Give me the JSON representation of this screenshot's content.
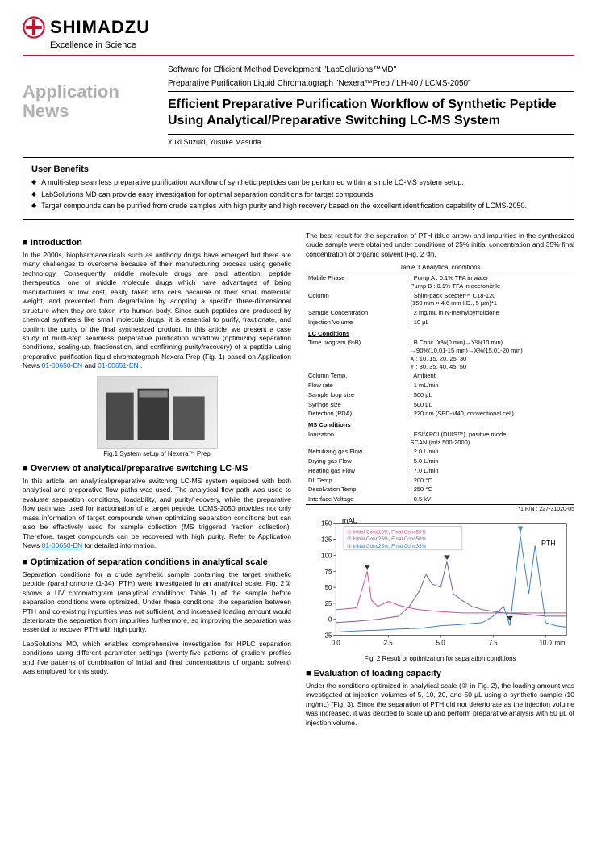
{
  "header": {
    "brand": "SHIMADZU",
    "tagline": "Excellence in Science",
    "logo_color": "#c8102e"
  },
  "title_block": {
    "app_news": "Application News",
    "software_line1": "Software for Efficient Method Development \"LabSolutions™MD\"",
    "software_line2": "Preparative Purification Liquid Chromatograph \"Nexera™Prep / LH-40 / LCMS-2050\"",
    "main_title": "Efficient Preparative Purification Workflow of Synthetic Peptide Using Analytical/Preparative Switching LC-MS System",
    "authors": "Yuki Suzuki, Yusuke Masuda"
  },
  "benefits": {
    "title": "User Benefits",
    "items": [
      "A multi-step seamless preparative purification workflow of synthetic peptides can be performed within a single LC-MS system setup.",
      "LabSolutions MD can provide easy investigation for optimal separation conditions for target compounds.",
      "Target compounds can be purified from crude samples with high purity and high recovery based on the excellent identification capability of LCMS-2050."
    ]
  },
  "intro": {
    "heading": "Introduction",
    "body": "In the 2000s, biopharmaceuticals such as antibody drugs have emerged but there are many challenges to overcome because of their manufacturing process using genetic technology. Consequently, middle molecule drugs are paid attention. peptide therapeutics, one of middle molecule drugs which have advantages of being manufactured at low cost, easily taken into cells because of their small molecular weight, and prevented from degradation by adopting a specific three-dimensional structure when they are taken into human body. Since such peptides are produced by chemical synthesis like small molecule drugs, it is essential to purify, fractionate, and confirm the purity of the final synthesized product. In this article, we present a case study of multi-step seamless preparative purification workflow (optimizing separation conditions, scaling-up, fractionation, and confirming purity/recovery) of a peptide using preparative purification liquid chromatograph Nexera Prep (Fig. 1) based on Application News ",
    "link1": "01-00650-EN",
    "link2": "01-00651-EN",
    "and": " and ",
    "period": "."
  },
  "fig1_caption": "Fig.1    System setup of Nexera™ Prep",
  "overview": {
    "heading": "Overview of analytical/preparative switching LC-MS",
    "body": "In this article, an analytical/preparative switching LC-MS system equipped with both analytical and preparative flow paths was used. The analytical flow path was used to evaluate separation conditions, loadability, and purity/recovery, while the preparative flow path was used for fractionation of a target peptide. LCMS-2050 provides not only mass information of target compounds when optimizing separation conditions but can also be effectively used for sample collection (MS triggered fraction collection). Therefore, target compounds can be recovered with high purity. Refer to Application News ",
    "link": "01-00650-EN",
    "tail": " for detailed information."
  },
  "optimization": {
    "heading": "Optimization of separation conditions in analytical scale",
    "body1": "Separation conditions for a crude synthetic sample containing the target synthetic peptide (parathormone (1-34): PTH) were investigated in an analytical scale. Fig. 2① shows a UV chromatogram (analytical conditions: Table 1) of the sample before separation conditions were optimized. Under these conditions, the separation between PTH and co-existing impurities was not sufficient, and increased loading amount would deteriorate the separation from impurities furthermore, so improving the separation was essential to recover PTH with high purity.",
    "body2": "LabSolutions MD, which enables comprehensive investigation for HPLC separation conditions using different parameter settings (twenty-five patterns of gradient profiles and five patterns of combination of initial and final concentrations of organic solvent) was employed for this study."
  },
  "right_intro": "The best result for the separation of PTH (blue arrow) and impurities in the synthesized crude sample were obtained under conditions of 25% initial concentration and 35% final concentration of organic solvent (Fig. 2 ③).",
  "table1": {
    "caption": "Table 1    Analytical conditions",
    "rows": [
      {
        "lbl": "Mobile Phase",
        "val": ": Pump A : 0.1% TFA in water\n  Pump B : 0.1% TFA in acetonitrile"
      },
      {
        "lbl": "Column",
        "val": ": Shim-pack Scepter™ C18-120\n  (150 mm × 4.6 mm I.D., 5 μm)*1"
      },
      {
        "lbl": "Sample Concentration",
        "val": ": 2 mg/mL in N-methylpyrrolidone"
      },
      {
        "lbl": "Injection Volume",
        "val": ": 10 μL"
      }
    ],
    "lc_group": "LC Conditions",
    "lc_rows": [
      {
        "lbl": "Time program (%B)",
        "val": ": B Conc. X%(0 min)→Y%(10 min)\n  →90%(10.01-15 min)→X%(15.01-20 min)\n  X : 10, 15, 20, 25, 30\n  Y : 30, 35, 40, 45, 50"
      },
      {
        "lbl": "Column Temp.",
        "val": ": Ambient"
      },
      {
        "lbl": "Flow rate",
        "val": ": 1 mL/min"
      },
      {
        "lbl": "Sample loop size",
        "val": ": 500 μL"
      },
      {
        "lbl": "Syringe size",
        "val": ": 500 μL"
      },
      {
        "lbl": "Detection (PDA)",
        "val": ": 220 nm (SPD-M40, conventional cell)"
      }
    ],
    "ms_group": "MS Conditions",
    "ms_rows": [
      {
        "lbl": "Ionization",
        "val": ": ESI/APCI (DUIS™),  positive mode\n  SCAN (m/z 500-2000)"
      },
      {
        "lbl": "Nebulizing gas Flow",
        "val": ": 2.0 L/min"
      },
      {
        "lbl": "Drying gas Flow",
        "val": ": 5.0 L/min"
      },
      {
        "lbl": "Heating gas Flow",
        "val": ": 7.0 L/min"
      },
      {
        "lbl": "DL Temp.",
        "val": ": 200 °C"
      },
      {
        "lbl": "Desolvation Temp.",
        "val": ": 250 °C"
      },
      {
        "lbl": "Interface Voltage",
        "val": ": 0.5 kV"
      }
    ]
  },
  "chart_note": "*1 P/N : 227-31020-05",
  "fig2": {
    "caption": "Fig. 2    Result of optimization for separation conditions",
    "ylabel": "mAU",
    "xlabel": "min",
    "ylim": [
      -25,
      150
    ],
    "yticks": [
      -25,
      0,
      25,
      50,
      75,
      100,
      125,
      150
    ],
    "xlim": [
      0,
      11
    ],
    "xticks": [
      0.0,
      2.5,
      5.0,
      7.5,
      10.0
    ],
    "legend": [
      {
        "label": "① Initial Conc10%, Final Conc50%",
        "color": "#d94a9a"
      },
      {
        "label": "② Initial Conc25%, Final Conc50%",
        "color": "#7a5ba6"
      },
      {
        "label": "③ Initial Conc25%, Final Conc35%",
        "color": "#3a7fbf"
      }
    ],
    "pth_label": "PTH",
    "arrow_color": "#3a7fbf",
    "series": [
      {
        "color": "#d94a9a",
        "points": [
          [
            0,
            15
          ],
          [
            1,
            18
          ],
          [
            1.5,
            75
          ],
          [
            1.7,
            30
          ],
          [
            2,
            20
          ],
          [
            2.5,
            28
          ],
          [
            3,
            22
          ],
          [
            3.5,
            18
          ],
          [
            4,
            15
          ],
          [
            5,
            12
          ],
          [
            6,
            10
          ],
          [
            7,
            10
          ],
          [
            8,
            10
          ],
          [
            9,
            10
          ],
          [
            10,
            10
          ],
          [
            11,
            10
          ]
        ]
      },
      {
        "color": "#7a5ba6",
        "points": [
          [
            0,
            -5
          ],
          [
            1,
            -3
          ],
          [
            2,
            0
          ],
          [
            3,
            5
          ],
          [
            3.5,
            20
          ],
          [
            4,
            45
          ],
          [
            4.3,
            70
          ],
          [
            4.6,
            55
          ],
          [
            5,
            50
          ],
          [
            5.3,
            90
          ],
          [
            5.6,
            40
          ],
          [
            6,
            30
          ],
          [
            6.5,
            20
          ],
          [
            7,
            15
          ],
          [
            8,
            10
          ],
          [
            9,
            8
          ],
          [
            10,
            5
          ],
          [
            11,
            5
          ]
        ]
      },
      {
        "color": "#3a7fbf",
        "points": [
          [
            0,
            -20
          ],
          [
            1,
            -18
          ],
          [
            2,
            -17
          ],
          [
            3,
            -15
          ],
          [
            4,
            -14
          ],
          [
            5,
            -10
          ],
          [
            6,
            -8
          ],
          [
            7,
            -5
          ],
          [
            7.5,
            5
          ],
          [
            8,
            20
          ],
          [
            8.3,
            -10
          ],
          [
            8.8,
            130
          ],
          [
            9.2,
            40
          ],
          [
            9.5,
            115
          ],
          [
            10,
            -5
          ],
          [
            10.5,
            -10
          ],
          [
            11,
            -12
          ]
        ]
      }
    ]
  },
  "loading": {
    "heading": "Evaluation of loading capacity",
    "body": "Under the conditions optimized in analytical scale (③ in Fig. 2), the loading amount was investigated at injection volumes of 5, 10, 20, and 50 μL using a synthetic sample (10 mg/mL) (Fig. 3). Since the separation of PTH did not deteriorate as the injection volume was increased, it was decided to scale up and perform preparative analysis with 50 μL of injection volume."
  }
}
